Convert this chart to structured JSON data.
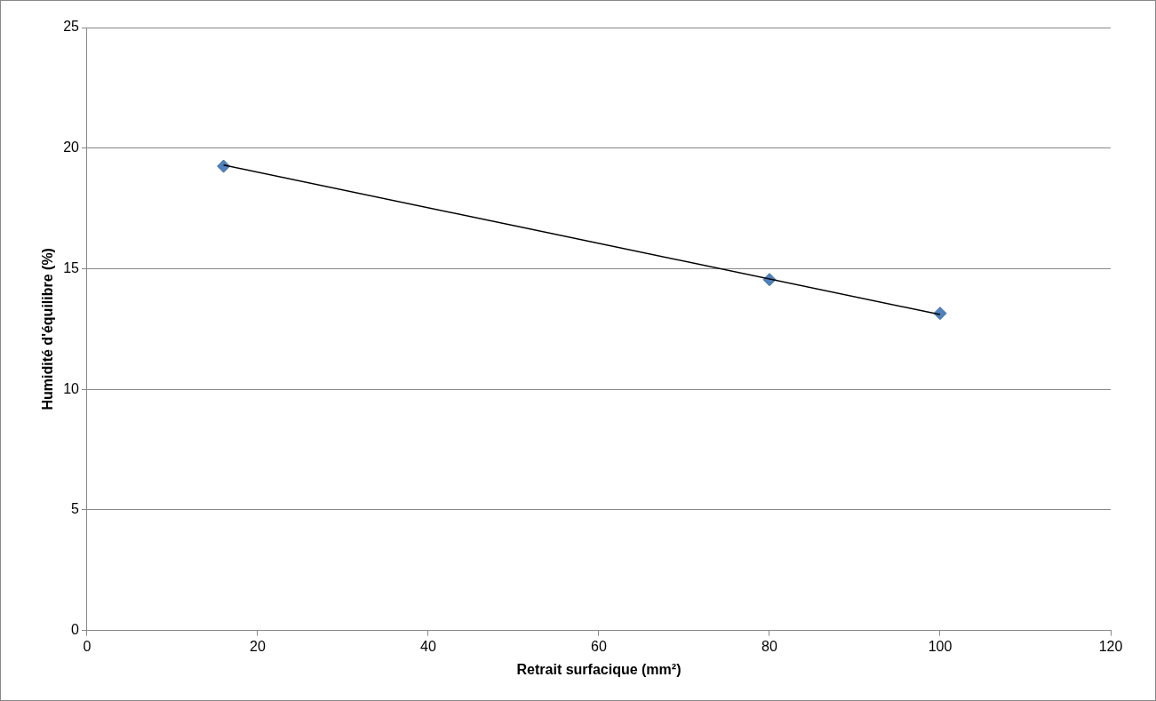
{
  "chart_data": {
    "type": "scatter",
    "xlabel": "Retrait surfacique (mm²)",
    "ylabel": "Humidité d'équilibre (%)",
    "x": [
      16,
      80,
      100
    ],
    "series": [
      {
        "color": "#4f81bd",
        "values": [
          19.25,
          14.55,
          13.15
        ],
        "marker": "diamond"
      },
      {
        "type": "line",
        "color": "#000000",
        "x": [
          16,
          100
        ],
        "values": [
          19.3,
          13.1
        ],
        "marker": "none",
        "line_style": "solid"
      }
    ],
    "xlim": [
      0,
      120
    ],
    "xticks": [
      0,
      20,
      40,
      60,
      80,
      100,
      120
    ],
    "ylim": [
      0,
      25
    ],
    "yticks": [
      0,
      5,
      10,
      15,
      20,
      25
    ],
    "grid": "y",
    "legend": false
  }
}
